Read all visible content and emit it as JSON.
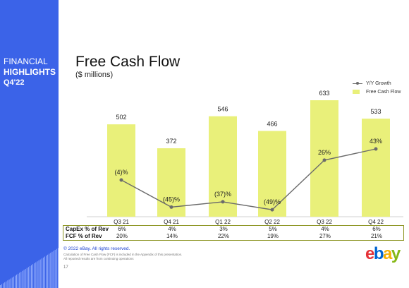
{
  "sidebar": {
    "line1": "FINANCIAL",
    "line2": "HIGHLIGHTS",
    "line3": "Q4'22"
  },
  "chart_data": {
    "type": "bar",
    "title": "Free Cash Flow",
    "subtitle": "($ millions)",
    "categories": [
      "Q3 21",
      "Q4 21",
      "Q1 22",
      "Q2 22",
      "Q3 22",
      "Q4 22"
    ],
    "series": [
      {
        "name": "Free Cash Flow",
        "type": "bar",
        "values": [
          502,
          372,
          546,
          466,
          633,
          533
        ],
        "labels": [
          "502",
          "372",
          "546",
          "466",
          "633",
          "533"
        ],
        "color": "#e9f07a"
      },
      {
        "name": "Y/Y Growth",
        "type": "line",
        "values": [
          -4,
          -45,
          -37,
          -49,
          26,
          43
        ],
        "labels": [
          "(4)%",
          "(45)%",
          "(37)%",
          "(49)%",
          "26%",
          "43%"
        ],
        "color": "#6b6b6b"
      }
    ],
    "legend_position": "top-right",
    "grid": false
  },
  "table": {
    "rows": [
      {
        "label": "CapEx % of Rev",
        "values": [
          "6%",
          "4%",
          "3%",
          "5%",
          "4%",
          "6%"
        ]
      },
      {
        "label": "FCF % of Rev",
        "values": [
          "20%",
          "14%",
          "22%",
          "19%",
          "27%",
          "21%"
        ]
      }
    ]
  },
  "footer": {
    "copyright": "© 2022 eBay. All rights reserved.",
    "note1": "Calculation of Free Cash Flow (FCF) is included in the Appendix of this presentation.",
    "note2": "All reported results are from continuing operations",
    "page": "17"
  },
  "logo": {
    "letters": [
      "e",
      "b",
      "a",
      "y"
    ],
    "colors": [
      "#e53238",
      "#0064d2",
      "#f5af02",
      "#86b817"
    ]
  }
}
